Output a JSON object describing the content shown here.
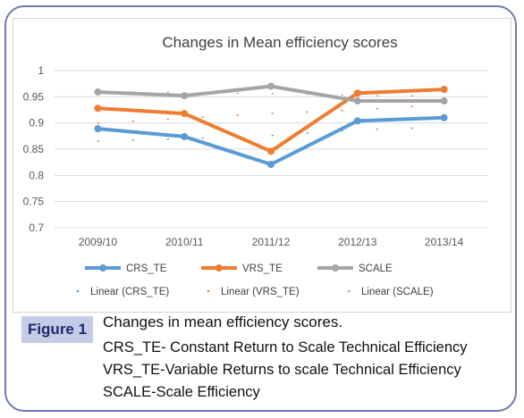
{
  "figure": {
    "label": "Figure 1",
    "caption_title": "Changes in mean efficiency scores.",
    "caption_lines": [
      "CRS_TE- Constant Return to Scale Technical Efficiency",
      "VRS_TE-Variable Returns to scale Technical Efficiency",
      "SCALE-Scale Efficiency"
    ]
  },
  "chart_data": {
    "type": "line",
    "title": "Changes in Mean efficiency scores",
    "categories": [
      "2009/10",
      "2010/11",
      "2011/12",
      "2012/13",
      "2013/14"
    ],
    "ylim": [
      0.7,
      1.0
    ],
    "yticks": [
      "0.7",
      "0.75",
      "0.8",
      "0.85",
      "0.9",
      "0.95",
      "1"
    ],
    "grid": true,
    "legend_position": "bottom",
    "series": [
      {
        "name": "CRS_TE",
        "color": "#5b9bd5",
        "values": [
          0.889,
          0.874,
          0.821,
          0.904,
          0.91
        ]
      },
      {
        "name": "VRS_TE",
        "color": "#ed7d31",
        "values": [
          0.928,
          0.918,
          0.846,
          0.957,
          0.964
        ]
      },
      {
        "name": "SCALE",
        "color": "#a5a5a5",
        "values": [
          0.959,
          0.952,
          0.97,
          0.942,
          0.942
        ]
      }
    ],
    "trendlines": [
      {
        "name": "Linear (CRS_TE)",
        "color": "#5b9bd5",
        "values": [
          0.865,
          0.87,
          0.876,
          0.887,
          0.892
        ]
      },
      {
        "name": "Linear (VRS_TE)",
        "color": "#ed7d31",
        "values": [
          0.899,
          0.909,
          0.918,
          0.925,
          0.935
        ]
      },
      {
        "name": "Linear (SCALE)",
        "color": "#a5a5a5",
        "values": [
          0.96,
          0.958,
          0.956,
          0.953,
          0.951
        ]
      }
    ]
  }
}
